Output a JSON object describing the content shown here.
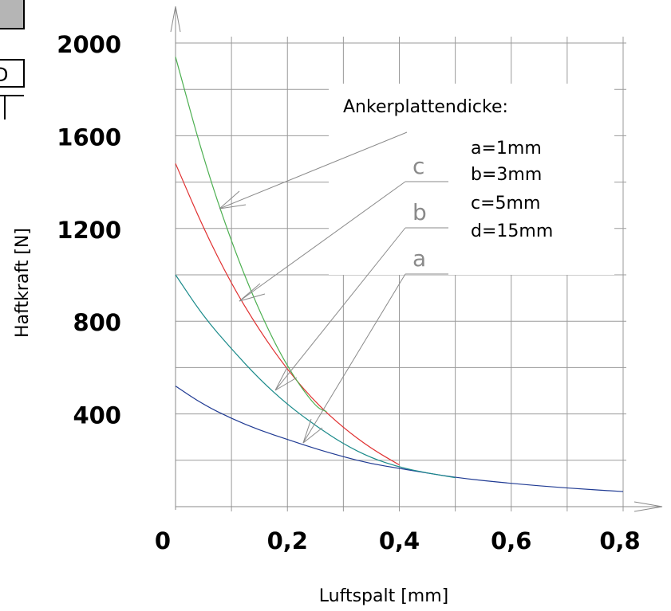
{
  "chart_data": {
    "type": "line",
    "xlabel": "Luftspalt [mm]",
    "ylabel": "Haftkraft [N]",
    "xlim": [
      0,
      0.8
    ],
    "ylim": [
      0,
      2000
    ],
    "x_ticks": [
      "0",
      "0,2",
      "0,4",
      "0,6",
      "0,8"
    ],
    "y_ticks": [
      "400",
      "800",
      "1200",
      "1600",
      "2000"
    ],
    "grid": true,
    "legend": {
      "title": "Ankerplattendicke:",
      "entries": [
        "a=1mm",
        "b=3mm",
        "c=5mm",
        "d=15mm"
      ],
      "placement": "top-right"
    },
    "curve_labels": [
      "c",
      "b",
      "a"
    ],
    "series": [
      {
        "name": "a",
        "color": "#1f3a93",
        "x": [
          0.0,
          0.05,
          0.1,
          0.15,
          0.2,
          0.25,
          0.3,
          0.35,
          0.4,
          0.5,
          0.6,
          0.7,
          0.8
        ],
        "y": [
          520,
          440,
          380,
          330,
          290,
          250,
          215,
          185,
          165,
          125,
          100,
          80,
          65
        ]
      },
      {
        "name": "b",
        "color": "#1a8a8a",
        "x": [
          0.0,
          0.05,
          0.1,
          0.15,
          0.2,
          0.25,
          0.3,
          0.35,
          0.4,
          0.45,
          0.5
        ],
        "y": [
          1000,
          820,
          680,
          550,
          440,
          350,
          270,
          210,
          170,
          145,
          125
        ]
      },
      {
        "name": "c",
        "color": "#e03030",
        "x": [
          0.0,
          0.05,
          0.1,
          0.15,
          0.2,
          0.25,
          0.3,
          0.35,
          0.4
        ],
        "y": [
          1480,
          1200,
          960,
          760,
          590,
          450,
          340,
          250,
          180
        ]
      },
      {
        "name": "d",
        "color": "#4caf50",
        "x": [
          0.0,
          0.05,
          0.1,
          0.15,
          0.2,
          0.25,
          0.27
        ],
        "y": [
          1940,
          1500,
          1140,
          840,
          600,
          430,
          410
        ]
      }
    ]
  },
  "left_fragment": {
    "box_text": "D"
  }
}
